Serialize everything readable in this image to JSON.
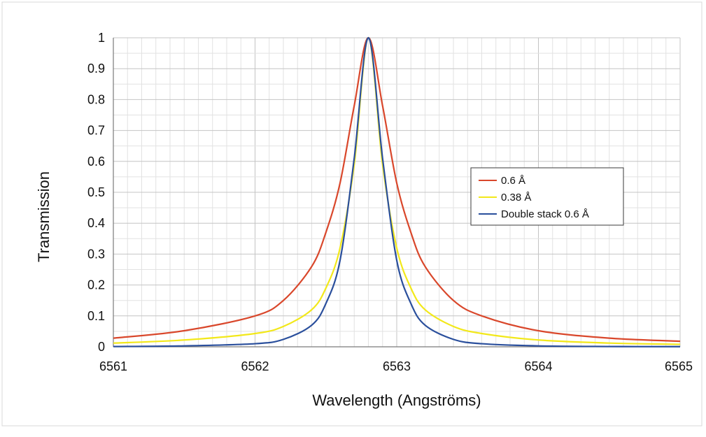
{
  "chart_data": {
    "type": "line",
    "xlabel": "Wavelength (Angströms)",
    "ylabel": "Transmission",
    "xlim": [
      6561,
      6565
    ],
    "ylim": [
      0,
      1
    ],
    "x_ticks": [
      "6561",
      "6562",
      "6563",
      "6564",
      "6565"
    ],
    "y_ticks": [
      "0",
      "0.1",
      "0.2",
      "0.3",
      "0.4",
      "0.5",
      "0.6",
      "0.7",
      "0.8",
      "0.9",
      "1"
    ],
    "grid": true,
    "legend_position": "right",
    "series": [
      {
        "name": "0.6 Å",
        "color": "#d9472b",
        "x": [
          6561.0,
          6561.5,
          6562.0,
          6562.2,
          6562.4,
          6562.5,
          6562.6,
          6562.7,
          6562.8,
          6562.9,
          6563.0,
          6563.1,
          6563.2,
          6563.4,
          6563.6,
          6564.0,
          6564.5,
          6565.0
        ],
        "y": [
          0.028,
          0.052,
          0.1,
          0.15,
          0.26,
          0.37,
          0.53,
          0.78,
          1.0,
          0.78,
          0.53,
          0.37,
          0.26,
          0.15,
          0.1,
          0.052,
          0.028,
          0.018
        ]
      },
      {
        "name": "0.38 Å",
        "color": "#f2e81a",
        "x": [
          6561.0,
          6561.5,
          6562.0,
          6562.2,
          6562.4,
          6562.5,
          6562.6,
          6562.7,
          6562.8,
          6562.9,
          6563.0,
          6563.1,
          6563.2,
          6563.4,
          6563.6,
          6564.0,
          6564.5,
          6565.0
        ],
        "y": [
          0.012,
          0.022,
          0.043,
          0.066,
          0.12,
          0.19,
          0.32,
          0.59,
          1.0,
          0.59,
          0.32,
          0.19,
          0.12,
          0.066,
          0.043,
          0.022,
          0.012,
          0.008
        ]
      },
      {
        "name": "Double stack 0.6 Å",
        "color": "#2a4f9c",
        "x": [
          6561.0,
          6561.5,
          6562.0,
          6562.2,
          6562.4,
          6562.5,
          6562.6,
          6562.7,
          6562.8,
          6562.9,
          6563.0,
          6563.1,
          6563.2,
          6563.4,
          6563.6,
          6564.0,
          6564.5,
          6565.0
        ],
        "y": [
          0.001,
          0.003,
          0.01,
          0.024,
          0.07,
          0.14,
          0.28,
          0.61,
          1.0,
          0.61,
          0.28,
          0.14,
          0.07,
          0.024,
          0.01,
          0.003,
          0.001,
          0.0005
        ]
      }
    ]
  }
}
